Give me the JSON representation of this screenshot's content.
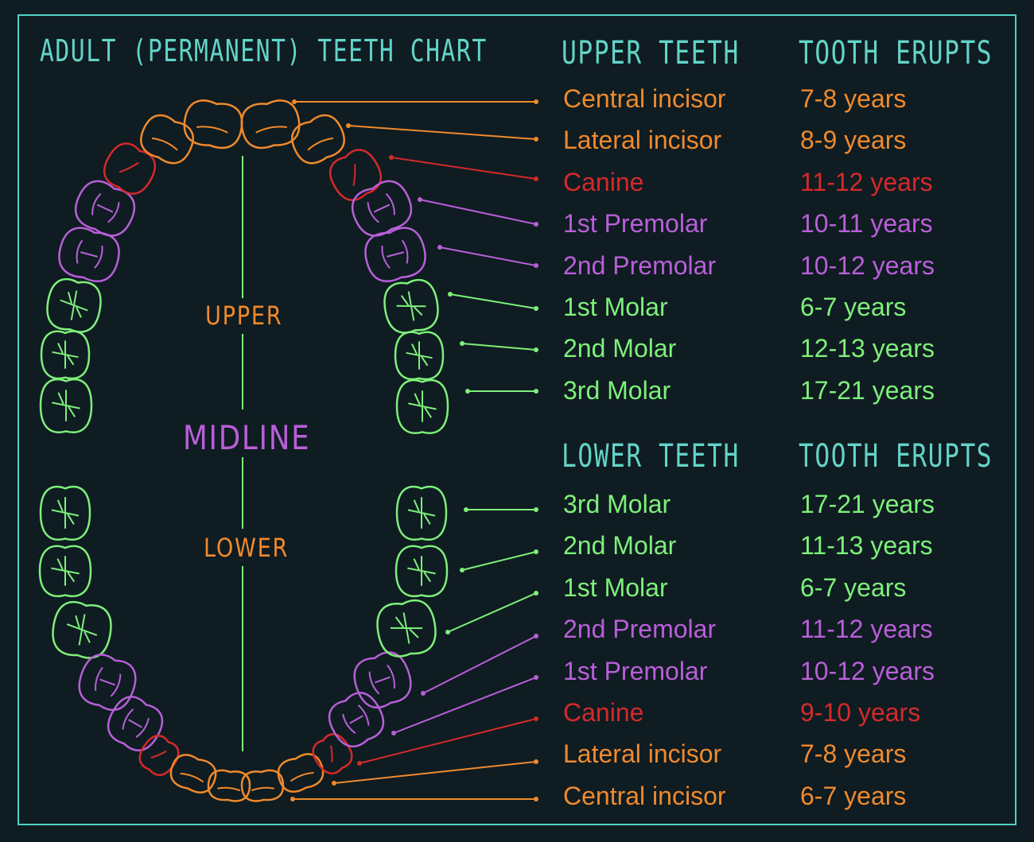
{
  "title": "ADULT (PERMANENT) TEETH CHART",
  "upper_heading": "UPPER TEETH",
  "lower_heading": "LOWER TEETH",
  "erupts_heading": "TOOTH ERUPTS",
  "labels": {
    "upper": "UPPER",
    "midline": "MIDLINE",
    "lower": "LOWER"
  },
  "colors": {
    "incisor": "#f08a2c",
    "canine": "#d42a2a",
    "premolar": "#b95fd9",
    "molar": "#7ef07a",
    "frame": "#4fd1c5",
    "background": "#0f1c22"
  },
  "upper": [
    {
      "name": "Central incisor",
      "age": "7-8 years",
      "type": "incisor"
    },
    {
      "name": "Lateral incisor",
      "age": "8-9 years",
      "type": "incisor"
    },
    {
      "name": "Canine",
      "age": "11-12 years",
      "type": "canine"
    },
    {
      "name": "1st Premolar",
      "age": "10-11 years",
      "type": "premolar"
    },
    {
      "name": "2nd Premolar",
      "age": "10-12 years",
      "type": "premolar"
    },
    {
      "name": "1st Molar",
      "age": "6-7 years",
      "type": "molar"
    },
    {
      "name": "2nd Molar",
      "age": "12-13 years",
      "type": "molar"
    },
    {
      "name": "3rd Molar",
      "age": "17-21 years",
      "type": "molar"
    }
  ],
  "lower": [
    {
      "name": "3rd Molar",
      "age": "17-21 years",
      "type": "molar"
    },
    {
      "name": "2nd Molar",
      "age": "11-13 years",
      "type": "molar"
    },
    {
      "name": "1st Molar",
      "age": "6-7 years",
      "type": "molar"
    },
    {
      "name": "2nd Premolar",
      "age": "11-12 years",
      "type": "premolar"
    },
    {
      "name": "1st Premolar",
      "age": "10-12 years",
      "type": "premolar"
    },
    {
      "name": "Canine",
      "age": "9-10 years",
      "type": "canine"
    },
    {
      "name": "Lateral incisor",
      "age": "7-8 years",
      "type": "incisor"
    },
    {
      "name": "Central incisor",
      "age": "6-7 years",
      "type": "incisor"
    }
  ]
}
